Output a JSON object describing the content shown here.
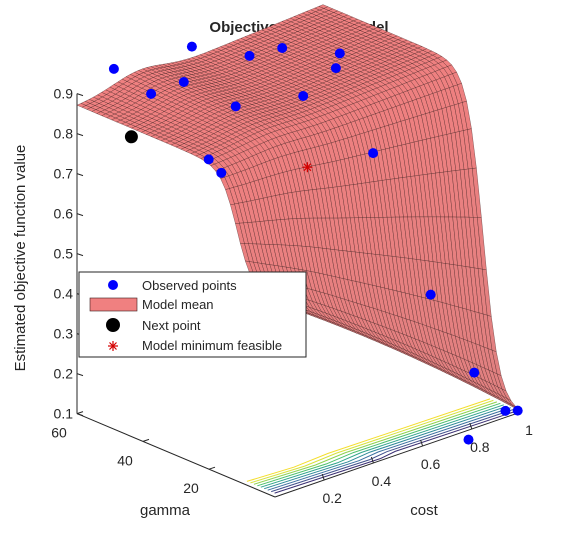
{
  "chart_data": {
    "type": "surface3d",
    "title": "Objective function model",
    "xlabel": "cost",
    "ylabel": "gamma",
    "zlabel": "Estimated objective function value",
    "x_ticks": [
      "0.2",
      "0.4",
      "0.6",
      "0.8",
      "1"
    ],
    "y_ticks": [
      "20",
      "40",
      "60"
    ],
    "z_ticks": [
      "0.1",
      "0.2",
      "0.3",
      "0.4",
      "0.5",
      "0.6",
      "0.7",
      "0.8",
      "0.9"
    ],
    "xlim": [
      0,
      1
    ],
    "ylim": [
      0,
      60
    ],
    "zlim": [
      0.1,
      0.9
    ],
    "legend": {
      "position": "left",
      "entries": [
        "Observed points",
        "Model mean",
        "Next point",
        "Model minimum feasible"
      ]
    },
    "colors": {
      "observed": "#0000ff",
      "surface": "#f08080",
      "surface_edge": "#3a1a1a",
      "next": "#000000",
      "model_min": "#d40000"
    },
    "observed_points": [
      {
        "cost": 0.05,
        "gamma": 20,
        "value": 0.83
      },
      {
        "cost": 0.1,
        "gamma": 45,
        "value": 0.93
      },
      {
        "cost": 0.15,
        "gamma": 60,
        "value": 0.93
      },
      {
        "cost": 0.2,
        "gamma": 35,
        "value": 0.78
      },
      {
        "cost": 0.3,
        "gamma": 50,
        "value": 0.9
      },
      {
        "cost": 0.35,
        "gamma": 38,
        "value": 0.87
      },
      {
        "cost": 0.4,
        "gamma": 55,
        "value": 0.95
      },
      {
        "cost": 0.45,
        "gamma": 25,
        "value": 0.92
      },
      {
        "cost": 0.5,
        "gamma": 45,
        "value": 0.94
      },
      {
        "cost": 0.6,
        "gamma": 15,
        "value": 0.78
      },
      {
        "cost": 0.65,
        "gamma": 30,
        "value": 0.93
      },
      {
        "cost": 0.7,
        "gamma": 50,
        "value": 0.9
      },
      {
        "cost": 0.8,
        "gamma": 40,
        "value": 0.9
      },
      {
        "cost": 0.7,
        "gamma": 5,
        "value": 0.44
      },
      {
        "cost": 0.85,
        "gamma": 3,
        "value": 0.22
      },
      {
        "cost": 0.95,
        "gamma": 1,
        "value": 0.11
      },
      {
        "cost": 1.0,
        "gamma": 1,
        "value": 0.1
      },
      {
        "cost": 0.8,
        "gamma": 1,
        "value": 0.07
      }
    ],
    "next_point": {
      "cost": 0.02,
      "gamma": 45,
      "value": 0.84
    },
    "model_minimum_feasible": {
      "cost": 0.4,
      "gamma": 20,
      "value": 0.77
    }
  }
}
